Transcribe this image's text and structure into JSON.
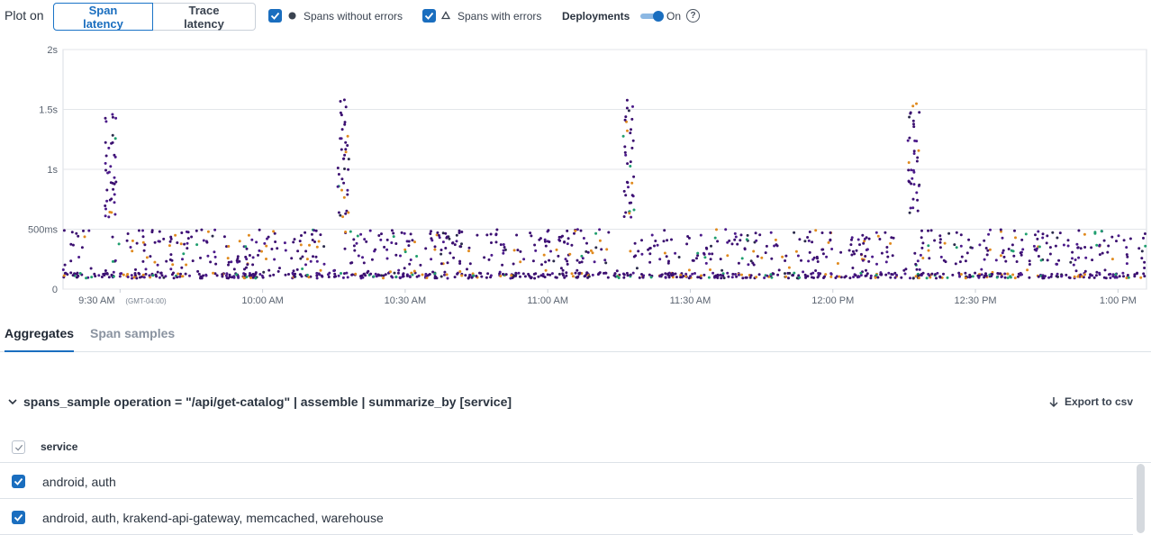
{
  "controls": {
    "plot_on_label": "Plot on",
    "span_latency": "Span latency",
    "trace_latency": "Trace latency",
    "spans_without_errors": "Spans without errors",
    "spans_with_errors": "Spans with errors",
    "deployments_label": "Deployments",
    "deployments_state": "On",
    "help_icon": "?"
  },
  "chart_data": {
    "type": "scatter",
    "title": "",
    "xlabel": "",
    "ylabel": "",
    "y_ticks": [
      "2s",
      "1.5s",
      "1s",
      "500ms",
      "0"
    ],
    "y_range_ms": [
      0,
      2000
    ],
    "x_range": [
      "9:18 AM",
      "1:06 PM"
    ],
    "x_ticks": [
      {
        "label": "9:30 AM",
        "sub": "(GMT-04:00)"
      },
      {
        "label": "10:00 AM",
        "sub": ""
      },
      {
        "label": "10:30 AM",
        "sub": ""
      },
      {
        "label": "11:00 AM",
        "sub": ""
      },
      {
        "label": "11:30 AM",
        "sub": ""
      },
      {
        "label": "12:00 PM",
        "sub": ""
      },
      {
        "label": "12:30 PM",
        "sub": ""
      },
      {
        "label": "1:00 PM",
        "sub": ""
      }
    ],
    "grid": true,
    "series_colors": [
      "#3b0f70",
      "#4b1a8a",
      "#e08a1e",
      "#1f9e6e",
      "#2a2a4a"
    ],
    "spike_times": [
      "9:28 AM",
      "10:17 AM",
      "11:17 AM",
      "12:17 PM"
    ],
    "spike_peak_ms": [
      1480,
      1590,
      1590,
      1550
    ],
    "baseline_low_ms": [
      90,
      180
    ],
    "baseline_high_ms": [
      200,
      500
    ]
  },
  "tabs": {
    "aggregates": "Aggregates",
    "span_samples": "Span samples"
  },
  "query": {
    "text": "spans_sample operation = \"/api/get-catalog\" | assemble | summarize_by [service]",
    "export": "Export to csv"
  },
  "table": {
    "column": "service",
    "rows": [
      {
        "label": "android, auth"
      },
      {
        "label": "android, auth, krakend-api-gateway, memcached, warehouse"
      }
    ]
  }
}
